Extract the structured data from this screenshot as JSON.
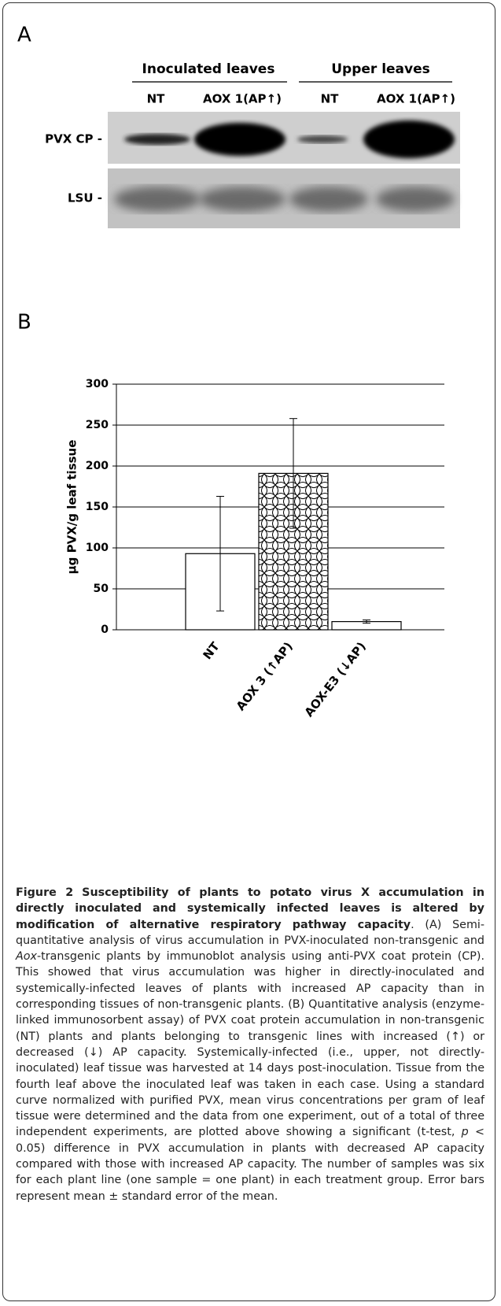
{
  "panel_labels": [
    "A",
    "B"
  ],
  "blot": {
    "groups": [
      "Inoculated leaves",
      "Upper leaves"
    ],
    "lanes": [
      "NT",
      "AOX 1(AP↑)",
      "NT",
      "AOX 1(AP↑)"
    ],
    "rows": [
      "PVX CP -",
      "LSU -"
    ]
  },
  "chart_data": {
    "type": "bar",
    "y_label": "µg PVX/g leaf tissue",
    "categories": [
      "NT",
      "AOX 3 (↑AP)",
      "AOX-E3 (↓AP)"
    ],
    "values": [
      93,
      191,
      10
    ],
    "errors": [
      70,
      67,
      2
    ],
    "hatch": [
      null,
      "crosshatch",
      null
    ],
    "color": "#ffffff",
    "ylim": [
      0,
      300
    ],
    "yticks": [
      0,
      50,
      100,
      150,
      200,
      250,
      300
    ],
    "grid": true
  },
  "caption": {
    "label": "Figure 2",
    "title": "Susceptibility of plants to potato virus X accumulation in directly inoculated and systemically infected leaves is altered by modification of alternative respiratory pathway capacity",
    "body": [
      ". (A) Semi-quantitative analysis of virus accumulation in PVX-inoculated non-transgenic and ",
      "Aox",
      "-transgenic plants by immunoblot analysis using anti-PVX coat protein (CP). This showed that virus accumulation was higher in directly-inoculated and systemically-infected leaves of plants with increased AP capacity than in corresponding tissues of non-transgenic plants. (B) Quantitative analysis (enzyme-linked immunosorbent assay) of PVX coat protein accumulation in non-transgenic (NT) plants and plants belonging to transgenic lines with increased (↑) or decreased (↓) AP capacity. Systemically-infected (i.e., upper, not directly-inoculated) leaf tissue was harvested at 14 days post-inoculation. Tissue from the fourth leaf above the inoculated leaf was taken in each case. Using a standard curve normalized with purified PVX, mean virus concentrations per gram of leaf tissue were determined and the data from one experiment, out of a total of three independent experiments, are plotted above showing a significant (t-test, ",
      "p",
      " < 0.05) difference in PVX accumulation in plants with decreased AP capacity compared with those with increased AP capacity. The number of samples was six for each plant line (one sample = one plant) in each treatment group. Error bars represent mean ± standard error of the mean."
    ]
  }
}
